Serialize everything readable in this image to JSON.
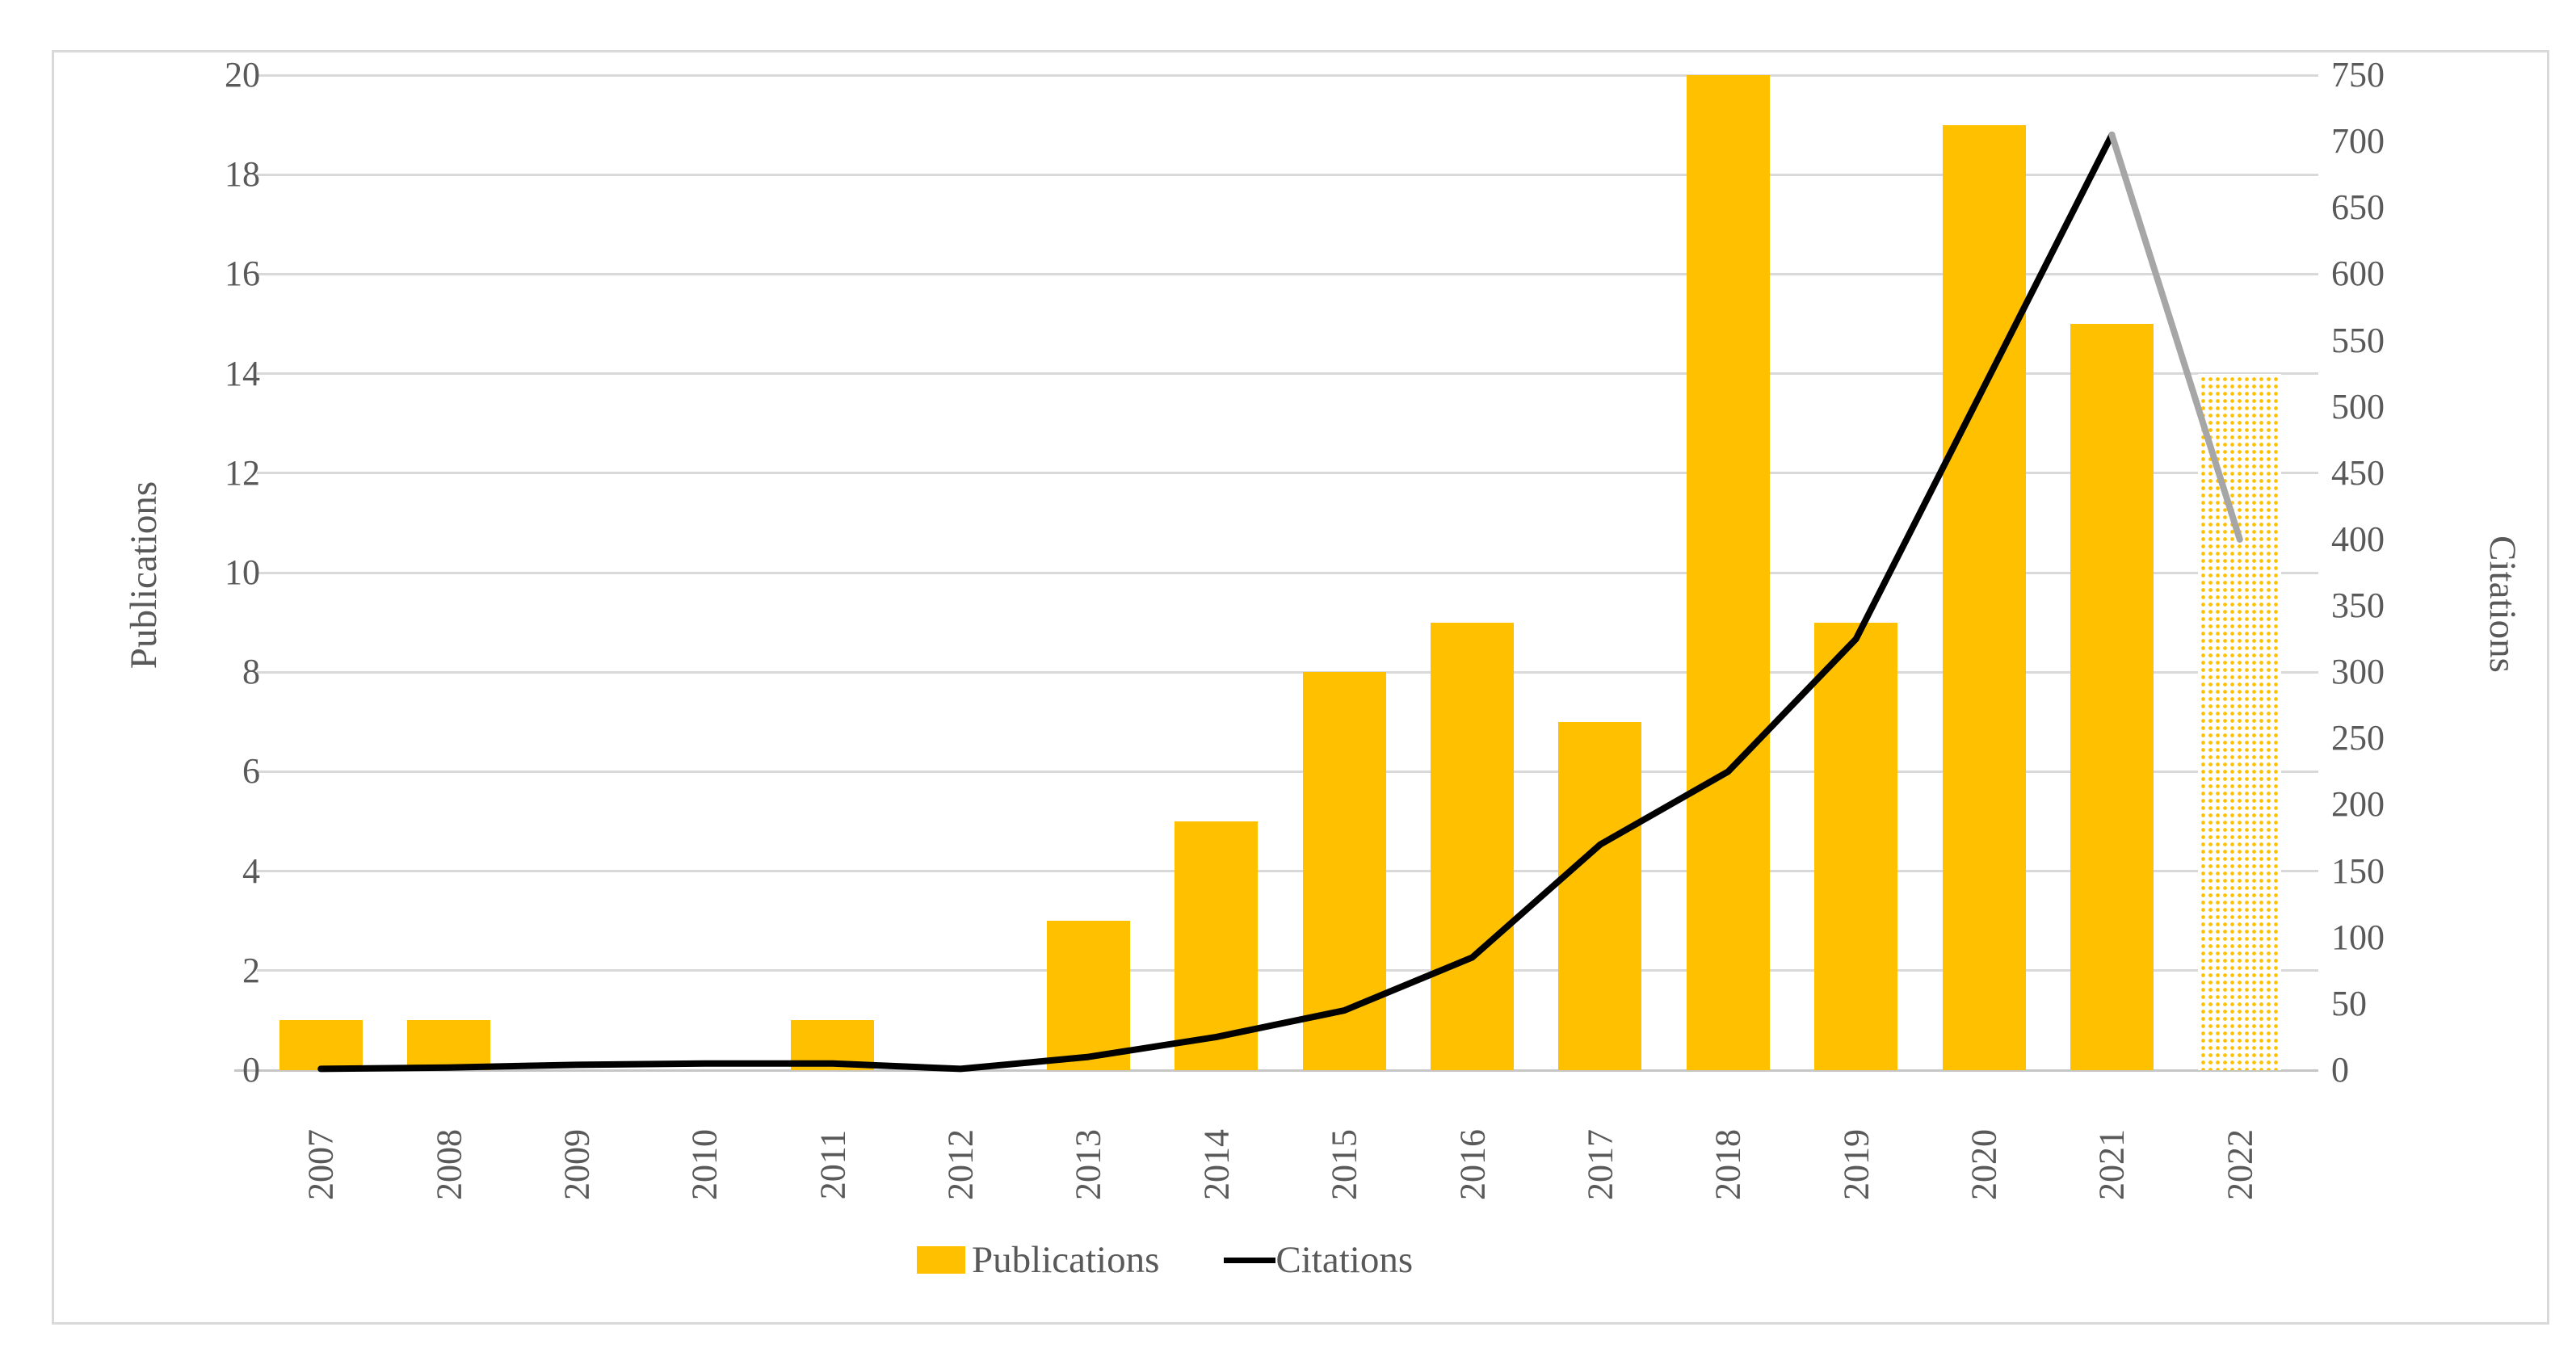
{
  "chart_data": {
    "type": "bar+line combo",
    "categories": [
      "2007",
      "2008",
      "2009",
      "2010",
      "2011",
      "2012",
      "2013",
      "2014",
      "2015",
      "2016",
      "2017",
      "2018",
      "2019",
      "2020",
      "2021",
      "2022"
    ],
    "series": [
      {
        "name": "Publications",
        "type": "bar",
        "axis": "left",
        "color": "#FFC000",
        "values": [
          1,
          1,
          0,
          0,
          1,
          0,
          3,
          5,
          8,
          9,
          7,
          20,
          9,
          19,
          15,
          14
        ],
        "note": "last bar (2022) rendered as dotted pattern"
      },
      {
        "name": "Citations",
        "type": "line",
        "axis": "right",
        "color": "#000000",
        "values": [
          1,
          2,
          4,
          5,
          5,
          1,
          10,
          25,
          45,
          85,
          170,
          225,
          325,
          515,
          705,
          400
        ],
        "note": "final segment 2021-2022 rendered gray (projection)"
      }
    ],
    "left_axis": {
      "label": "Publications",
      "min": 0,
      "max": 20,
      "step": 2
    },
    "right_axis": {
      "label": "Citations",
      "min": 0,
      "max": 750,
      "step": 50
    },
    "grid": "horizontal gridlines every 2 left-axis units",
    "legend_position": "bottom-center",
    "colors": {
      "bar": "#FFC000",
      "line": "#000000",
      "line_projection": "#a6a6a6",
      "gridline": "#d9d9d9",
      "axis_text": "#595959",
      "frame": "#d9d9d9"
    }
  },
  "legend": {
    "publications_label": "Publications",
    "citations_label": "Citations"
  },
  "titles": {
    "left_axis": "Publications",
    "right_axis": "Citations"
  }
}
